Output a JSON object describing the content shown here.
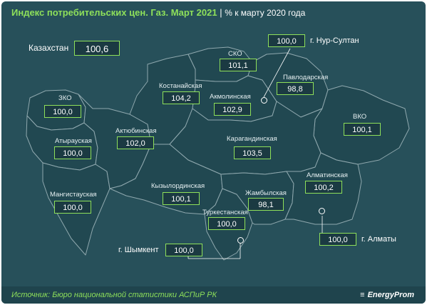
{
  "header": {
    "title": "Индекс потребительских цен. Газ. Март 2021",
    "separator": " | ",
    "unit": "% к марту 2020 года"
  },
  "country": {
    "label": "Казахстан",
    "value": "100,6"
  },
  "regions": {
    "zko": {
      "name": "ЗКО",
      "value": "100,0"
    },
    "atyrau": {
      "name": "Атырауская",
      "value": "100,0"
    },
    "mangystau": {
      "name": "Мангистауская",
      "value": "100,0"
    },
    "aktobe": {
      "name": "Актюбинская",
      "value": "102,0"
    },
    "kostanay": {
      "name": "Костанайская",
      "value": "104,2"
    },
    "sko": {
      "name": "СКО",
      "value": "101,1"
    },
    "akmola": {
      "name": "Акмолинская",
      "value": "102,9"
    },
    "pavlodar": {
      "name": "Павлодарская",
      "value": "98,8"
    },
    "vko": {
      "name": "ВКО",
      "value": "100,1"
    },
    "karaganda": {
      "name": "Карагандинская",
      "value": "103,5"
    },
    "kyzylorda": {
      "name": "Кызылординская",
      "value": "100,1"
    },
    "zhambyl": {
      "name": "Жамбылская",
      "value": "98,1"
    },
    "almaty_region": {
      "name": "Алматинская",
      "value": "100,2"
    },
    "turkestan": {
      "name": "Туркестанская",
      "value": "100,0"
    }
  },
  "cities": {
    "nur_sultan": {
      "name": "г. Нур-Султан",
      "value": "100,0"
    },
    "almaty": {
      "name": "г. Алматы",
      "value": "100,0"
    },
    "shymkent": {
      "name": "г. Шымкент",
      "value": "100,0"
    }
  },
  "footer": {
    "source": "Источник: Бюро национальной статистики АСПиР РК",
    "brand": "EnergyProm"
  },
  "colors": {
    "background": "#27505a",
    "region_fill": "#214851",
    "border": "#8fa8ae",
    "accent": "#8ee05a"
  }
}
